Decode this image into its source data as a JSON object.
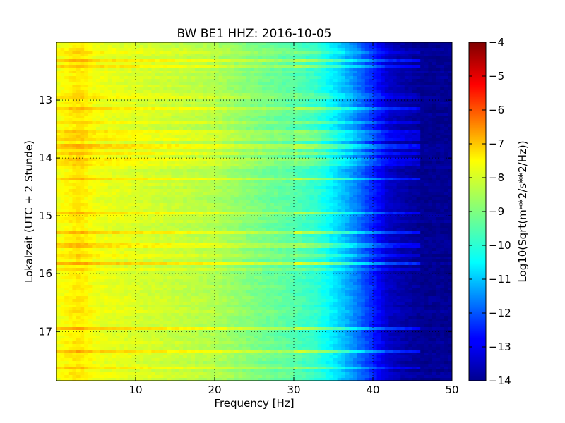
{
  "chart_data": {
    "type": "heatmap",
    "title": "BW BE1 HHZ: 2016-10-05",
    "xlabel": "Frequency [Hz]",
    "ylabel": "Lokalzeit (UTC + 2 Stunde)",
    "xlim": [
      0,
      50
    ],
    "ylim": [
      12.0,
      17.85
    ],
    "y_inverted": true,
    "x_ticks": [
      10,
      20,
      30,
      40,
      50
    ],
    "x_tick_labels": [
      "10",
      "20",
      "30",
      "40",
      "50"
    ],
    "y_ticks": [
      13,
      14,
      15,
      16,
      17
    ],
    "y_tick_labels": [
      "13",
      "14",
      "15",
      "16",
      "17"
    ],
    "grid": true,
    "grid_style": "dotted",
    "colormap": "jet",
    "colorbar": {
      "label": "Log10(Sqrt(m**2/s**2/Hz))",
      "range": [
        -14,
        -4
      ],
      "ticks": [
        -4,
        -5,
        -6,
        -7,
        -8,
        -9,
        -10,
        -11,
        -12,
        -13,
        -14
      ],
      "tick_labels": [
        "−4",
        "−5",
        "−6",
        "−7",
        "−8",
        "−9",
        "−10",
        "−11",
        "−12",
        "−13",
        "−14"
      ]
    },
    "spectrum_profile": {
      "frequency_hz": [
        0,
        2,
        3,
        5,
        10,
        15,
        20,
        25,
        30,
        33,
        35,
        37,
        40,
        42,
        44,
        45,
        46,
        50
      ],
      "log10_amplitude": [
        -7.9,
        -7.6,
        -7.5,
        -7.9,
        -8.1,
        -8.3,
        -8.5,
        -9.0,
        -9.4,
        -9.8,
        -10.4,
        -11.1,
        -12.4,
        -13.3,
        -13.6,
        -13.7,
        -13.8,
        -13.8
      ]
    },
    "noisy_time_bands": [
      {
        "time": 12.17,
        "offset": 0.5
      },
      {
        "time": 12.3,
        "offset": 1.0
      },
      {
        "time": 12.41,
        "offset": 0.8
      },
      {
        "time": 12.93,
        "offset": 0.4
      },
      {
        "time": 13.14,
        "offset": 1.1
      },
      {
        "time": 13.21,
        "offset": 0.4
      },
      {
        "time": 13.38,
        "offset": 0.7
      },
      {
        "time": 13.55,
        "offset": 0.8
      },
      {
        "time": 13.61,
        "offset": 0.6
      },
      {
        "time": 13.69,
        "offset": 0.7
      },
      {
        "time": 13.8,
        "offset": 1.0
      },
      {
        "time": 13.91,
        "offset": 0.7
      },
      {
        "time": 14.02,
        "offset": 0.6
      },
      {
        "time": 14.1,
        "offset": 0.6
      },
      {
        "time": 14.35,
        "offset": 1.2
      },
      {
        "time": 14.95,
        "offset": 1.0
      },
      {
        "time": 15.29,
        "offset": 1.3
      },
      {
        "time": 15.51,
        "offset": 0.8
      },
      {
        "time": 15.67,
        "offset": 0.7
      },
      {
        "time": 15.83,
        "offset": 1.3
      },
      {
        "time": 15.91,
        "offset": 0.5
      },
      {
        "time": 16.95,
        "offset": 1.0
      },
      {
        "time": 17.33,
        "offset": 1.3
      },
      {
        "time": 17.62,
        "offset": 0.6
      }
    ]
  }
}
